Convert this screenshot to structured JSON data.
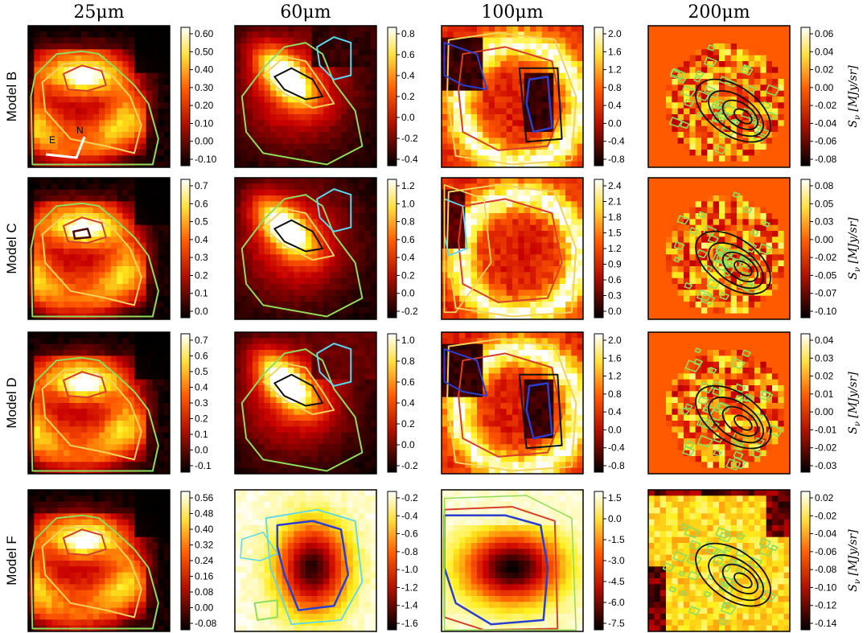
{
  "chart_data": {
    "type": "heatmap",
    "colormap": "hot (black-red-orange-yellow-white)",
    "columns": [
      "25μm",
      "60μm",
      "100μm",
      "200μm"
    ],
    "rows": [
      "Model B",
      "Model C",
      "Model D",
      "Model F"
    ],
    "colorbar_label": "S_ν [MJy/sr]",
    "colorbar_label_parts": {
      "symbol": "S",
      "subscript": "ν",
      "unit": " [MJy/sr]"
    },
    "orientation_labels": {
      "east": "E",
      "north": "N"
    },
    "panels": [
      {
        "row": "Model B",
        "band": "25μm",
        "ticks": [
          "0.60",
          "0.50",
          "0.40",
          "0.30",
          "0.20",
          "0.10",
          "0.00",
          "-0.10"
        ]
      },
      {
        "row": "Model B",
        "band": "60μm",
        "ticks": [
          "0.8",
          "0.6",
          "0.4",
          "0.2",
          "0.0",
          "-0.2",
          "-0.4"
        ]
      },
      {
        "row": "Model B",
        "band": "100μm",
        "ticks": [
          "2.0",
          "1.6",
          "1.2",
          "0.8",
          "0.4",
          "0.0",
          "-0.4",
          "-0.8"
        ]
      },
      {
        "row": "Model B",
        "band": "200μm",
        "ticks": [
          "0.06",
          "0.04",
          "0.02",
          "0.00",
          "-0.02",
          "-0.04",
          "-0.06",
          "-0.08"
        ]
      },
      {
        "row": "Model C",
        "band": "25μm",
        "ticks": [
          "0.7",
          "0.6",
          "0.5",
          "0.4",
          "0.3",
          "0.2",
          "0.1",
          "0.0"
        ]
      },
      {
        "row": "Model C",
        "band": "60μm",
        "ticks": [
          "1.2",
          "1.0",
          "0.8",
          "0.6",
          "0.4",
          "0.2",
          "0.0",
          "-0.2"
        ]
      },
      {
        "row": "Model C",
        "band": "100μm",
        "ticks": [
          "2.4",
          "2.1",
          "1.8",
          "1.5",
          "1.2",
          "0.9",
          "0.6",
          "0.3",
          "0.0"
        ]
      },
      {
        "row": "Model C",
        "band": "200μm",
        "ticks": [
          "0.08",
          "0.05",
          "0.03",
          "0.00",
          "-0.02",
          "-0.05",
          "-0.07",
          "-0.10"
        ]
      },
      {
        "row": "Model D",
        "band": "25μm",
        "ticks": [
          "0.7",
          "0.6",
          "0.5",
          "0.4",
          "0.3",
          "0.2",
          "0.1",
          "0.0",
          "-0.1"
        ]
      },
      {
        "row": "Model D",
        "band": "60μm",
        "ticks": [
          "1.0",
          "0.8",
          "0.6",
          "0.4",
          "0.2",
          "0.0",
          "-0.2"
        ]
      },
      {
        "row": "Model D",
        "band": "100μm",
        "ticks": [
          "2.0",
          "1.6",
          "1.2",
          "0.8",
          "0.4",
          "0.0",
          "-0.4",
          "-0.8"
        ]
      },
      {
        "row": "Model D",
        "band": "200μm",
        "ticks": [
          "0.04",
          "0.03",
          "0.02",
          "0.01",
          "0.00",
          "-0.01",
          "-0.02",
          "-0.03"
        ]
      },
      {
        "row": "Model F",
        "band": "25μm",
        "ticks": [
          "0.56",
          "0.48",
          "0.40",
          "0.32",
          "0.24",
          "0.16",
          "0.08",
          "0.00",
          "-0.08"
        ]
      },
      {
        "row": "Model F",
        "band": "60μm",
        "ticks": [
          "-0.2",
          "-0.4",
          "-0.6",
          "-0.8",
          "-1.0",
          "-1.2",
          "-1.4",
          "-1.6"
        ]
      },
      {
        "row": "Model F",
        "band": "100μm",
        "ticks": [
          "1.5",
          "0.0",
          "-1.5",
          "-3.0",
          "-4.5",
          "-6.0",
          "-7.5"
        ]
      },
      {
        "row": "Model F",
        "band": "200μm",
        "ticks": [
          "0.02",
          "-0.02",
          "-0.04",
          "-0.06",
          "-0.08",
          "-0.10",
          "-0.12",
          "-0.14"
        ]
      }
    ],
    "colors": {
      "contour_green": "#8fdc5a",
      "contour_yellow": "#f2d25a",
      "contour_red": "#d6402a",
      "contour_cyan": "#5ad8f0",
      "contour_blue": "#2a3fd0",
      "contour_black": "#111111"
    }
  }
}
